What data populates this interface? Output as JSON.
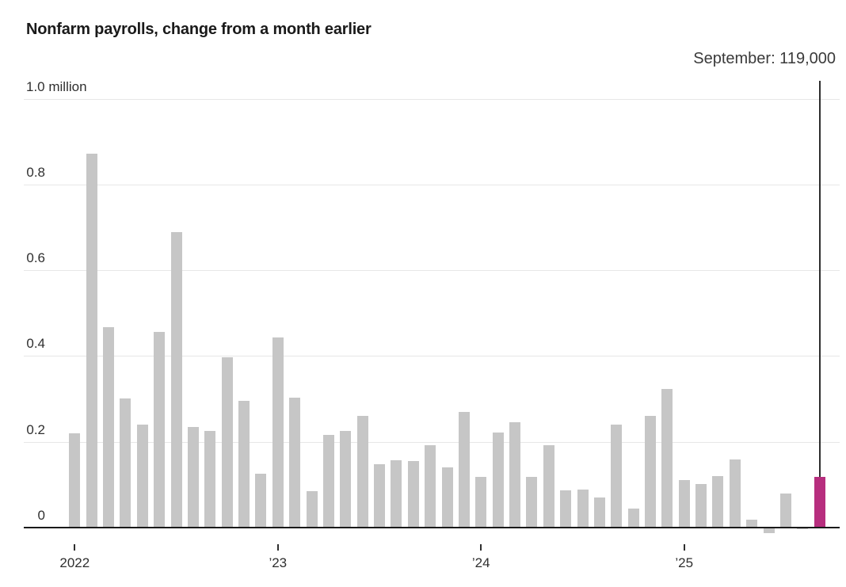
{
  "title": "Nonfarm payrolls, change from a month earlier",
  "annotation": {
    "text": "September: 119,000",
    "value": 119000,
    "month": "September"
  },
  "chart_data": {
    "type": "bar",
    "title": "Nonfarm payrolls, change from a month earlier",
    "unit": "million",
    "ylabel": "",
    "xlabel": "",
    "ylim": [
      -0.02,
      1.0
    ],
    "grid": true,
    "bar_color": "#c6c6c6",
    "highlight_color": "#b72e7e",
    "highlight_index": 44,
    "axis_color": "#1a1a1a",
    "gridline_color": "#e7e7e7",
    "x": [
      "2022-01",
      "2022-02",
      "2022-03",
      "2022-04",
      "2022-05",
      "2022-06",
      "2022-07",
      "2022-08",
      "2022-09",
      "2022-10",
      "2022-11",
      "2022-12",
      "2023-01",
      "2023-02",
      "2023-03",
      "2023-04",
      "2023-05",
      "2023-06",
      "2023-07",
      "2023-08",
      "2023-09",
      "2023-10",
      "2023-11",
      "2023-12",
      "2024-01",
      "2024-02",
      "2024-03",
      "2024-04",
      "2024-05",
      "2024-06",
      "2024-07",
      "2024-08",
      "2024-09",
      "2024-10",
      "2024-11",
      "2024-12",
      "2025-01",
      "2025-02",
      "2025-03",
      "2025-04",
      "2025-05",
      "2025-06",
      "2025-07",
      "2025-08",
      "2025-09"
    ],
    "values": [
      0.22,
      0.872,
      0.467,
      0.301,
      0.24,
      0.457,
      0.689,
      0.234,
      0.225,
      0.397,
      0.295,
      0.125,
      0.444,
      0.303,
      0.085,
      0.216,
      0.225,
      0.261,
      0.147,
      0.157,
      0.156,
      0.192,
      0.141,
      0.269,
      0.119,
      0.222,
      0.246,
      0.118,
      0.193,
      0.087,
      0.088,
      0.071,
      0.24,
      0.044,
      0.261,
      0.323,
      0.111,
      0.102,
      0.12,
      0.158,
      0.019,
      -0.013,
      0.079,
      -0.004,
      0.119
    ],
    "yticks": [
      {
        "value": 1.0,
        "label": "1.0 million"
      },
      {
        "value": 0.8,
        "label": "0.8"
      },
      {
        "value": 0.6,
        "label": "0.6"
      },
      {
        "value": 0.4,
        "label": "0.4"
      },
      {
        "value": 0.2,
        "label": "0.2"
      },
      {
        "value": 0.0,
        "label": "0"
      }
    ],
    "xticks": [
      {
        "month_index": 0,
        "label": "2022"
      },
      {
        "month_index": 12,
        "label": "’23"
      },
      {
        "month_index": 24,
        "label": "’24"
      },
      {
        "month_index": 36,
        "label": "’25"
      }
    ],
    "annotation": "September: 119,000"
  }
}
